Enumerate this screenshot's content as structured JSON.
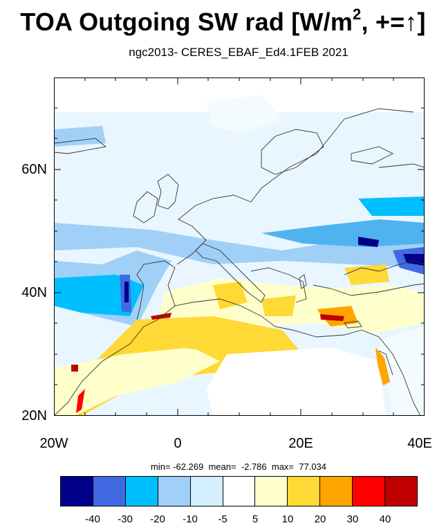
{
  "title": {
    "main": "TOA Outgoing SW rad [W/m",
    "sup": "2",
    "suffix": ", +=↑]"
  },
  "subtitle": "ngc2013- CERES_EBAF_Ed4.1FEB 2021",
  "axes": {
    "y_labels": [
      "60N",
      "40N",
      "20N"
    ],
    "x_labels": [
      "20W",
      "0",
      "20E",
      "40E"
    ],
    "lat_range": [
      20,
      75
    ],
    "lon_range": [
      -20,
      40
    ]
  },
  "stats": {
    "text": "min= -62.269  mean=  -2.786  max=  77.034"
  },
  "colorbar": {
    "colors": [
      "#00008b",
      "#4169e1",
      "#00bfff",
      "#a0d0f8",
      "#d4f0ff",
      "#ffffff",
      "#ffffcc",
      "#ffd935",
      "#ffa500",
      "#ff0000",
      "#c00000"
    ],
    "labels": [
      "-40",
      "-30",
      "-20",
      "-10",
      "-5",
      "5",
      "10",
      "20",
      "30",
      "40"
    ]
  }
}
